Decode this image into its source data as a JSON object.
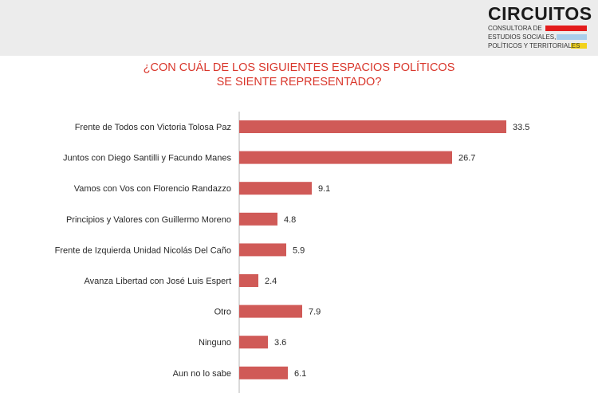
{
  "brand": {
    "name": "CIRCUITOS",
    "tagline_lines": [
      "CONSULTORA DE",
      "ESTUDIOS SOCIALES,",
      "POLÍTICOS Y TERRITORIALES"
    ],
    "colors": {
      "red": "#e31b1b",
      "blue": "#a9cdea",
      "yellow": "#f2d21b"
    }
  },
  "chart_data": {
    "type": "bar",
    "orientation": "horizontal",
    "title_lines": [
      "¿CON CUÁL DE LOS SIGUIENTES ESPACIOS POLÍTICOS",
      "SE SIENTE REPRESENTADO?"
    ],
    "categories": [
      "Frente de Todos  con Victoria Tolosa Paz",
      "Juntos con Diego Santilli y Facundo Manes",
      "Vamos con Vos con Florencio Randazzo",
      "Principios y Valores con Guillermo Moreno",
      "Frente de Izquierda Unidad Nicolás Del Caño",
      "Avanza Libertad con José Luis Espert",
      "Otro",
      "Ninguno",
      "Aun no lo sabe"
    ],
    "values": [
      33.5,
      26.7,
      9.1,
      4.8,
      5.9,
      2.4,
      7.9,
      3.6,
      6.1
    ],
    "value_labels": [
      "33.5",
      "26.7",
      "9.1",
      "4.8",
      "5.9",
      "2.4",
      "7.9",
      "3.6",
      "6.1"
    ],
    "bar_color": "#d05a57",
    "title_color": "#d9362b",
    "xlim": [
      0,
      35
    ],
    "grid": false,
    "legend": "none"
  }
}
